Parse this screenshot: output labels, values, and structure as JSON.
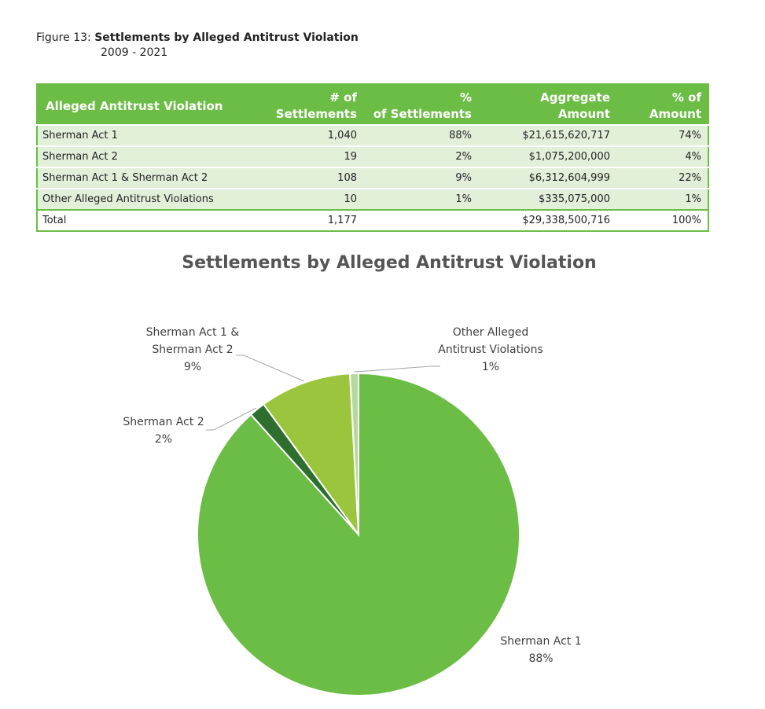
{
  "figure": {
    "number_label": "Figure 13:",
    "title": "Settlements by Alleged Antitrust Violation",
    "subtitle": "2009 - 2021"
  },
  "table": {
    "headers": [
      {
        "line1": "Alleged Antitrust Violation",
        "line2": ""
      },
      {
        "line1": "# of",
        "line2": "Settlements"
      },
      {
        "line1": "%",
        "line2": "of Settlements"
      },
      {
        "line1": "Aggregate",
        "line2": "Amount"
      },
      {
        "line1": "% of",
        "line2": "Amount"
      }
    ],
    "rows": [
      {
        "violation": "Sherman Act 1",
        "count": "1,040",
        "pct": "88%",
        "amount": "$21,615,620,717",
        "pct_amount": "74%"
      },
      {
        "violation": "Sherman Act 2",
        "count": "19",
        "pct": "2%",
        "amount": "$1,075,200,000",
        "pct_amount": "4%"
      },
      {
        "violation": "Sherman Act 1 & Sherman Act 2",
        "count": "108",
        "pct": "9%",
        "amount": "$6,312,604,999",
        "pct_amount": "22%"
      },
      {
        "violation": "Other Alleged Antitrust Violations",
        "count": "10",
        "pct": "1%",
        "amount": "$335,075,000",
        "pct_amount": "1%"
      }
    ],
    "total": {
      "violation": "Total",
      "count": "1,177",
      "pct": "",
      "amount": "$29,338,500,716",
      "pct_amount": "100%"
    }
  },
  "chart_data": {
    "type": "pie",
    "title": "Settlements by Alleged Antitrust Violation",
    "slices": [
      {
        "label_lines": [
          "Sherman Act 1"
        ],
        "value": 1040,
        "pct_label": "88%",
        "color": "#6cbd45"
      },
      {
        "label_lines": [
          "Sherman Act 2"
        ],
        "value": 19,
        "pct_label": "2%",
        "color": "#2e6e2e"
      },
      {
        "label_lines": [
          "Sherman Act 1 &",
          "Sherman Act 2"
        ],
        "value": 108,
        "pct_label": "9%",
        "color": "#9bc53d"
      },
      {
        "label_lines": [
          "Other Alleged",
          "Antitrust Violations"
        ],
        "value": 10,
        "pct_label": "1%",
        "color": "#b5d99c"
      }
    ],
    "start": "12 o'clock",
    "direction": "clockwise",
    "legend": "none"
  }
}
